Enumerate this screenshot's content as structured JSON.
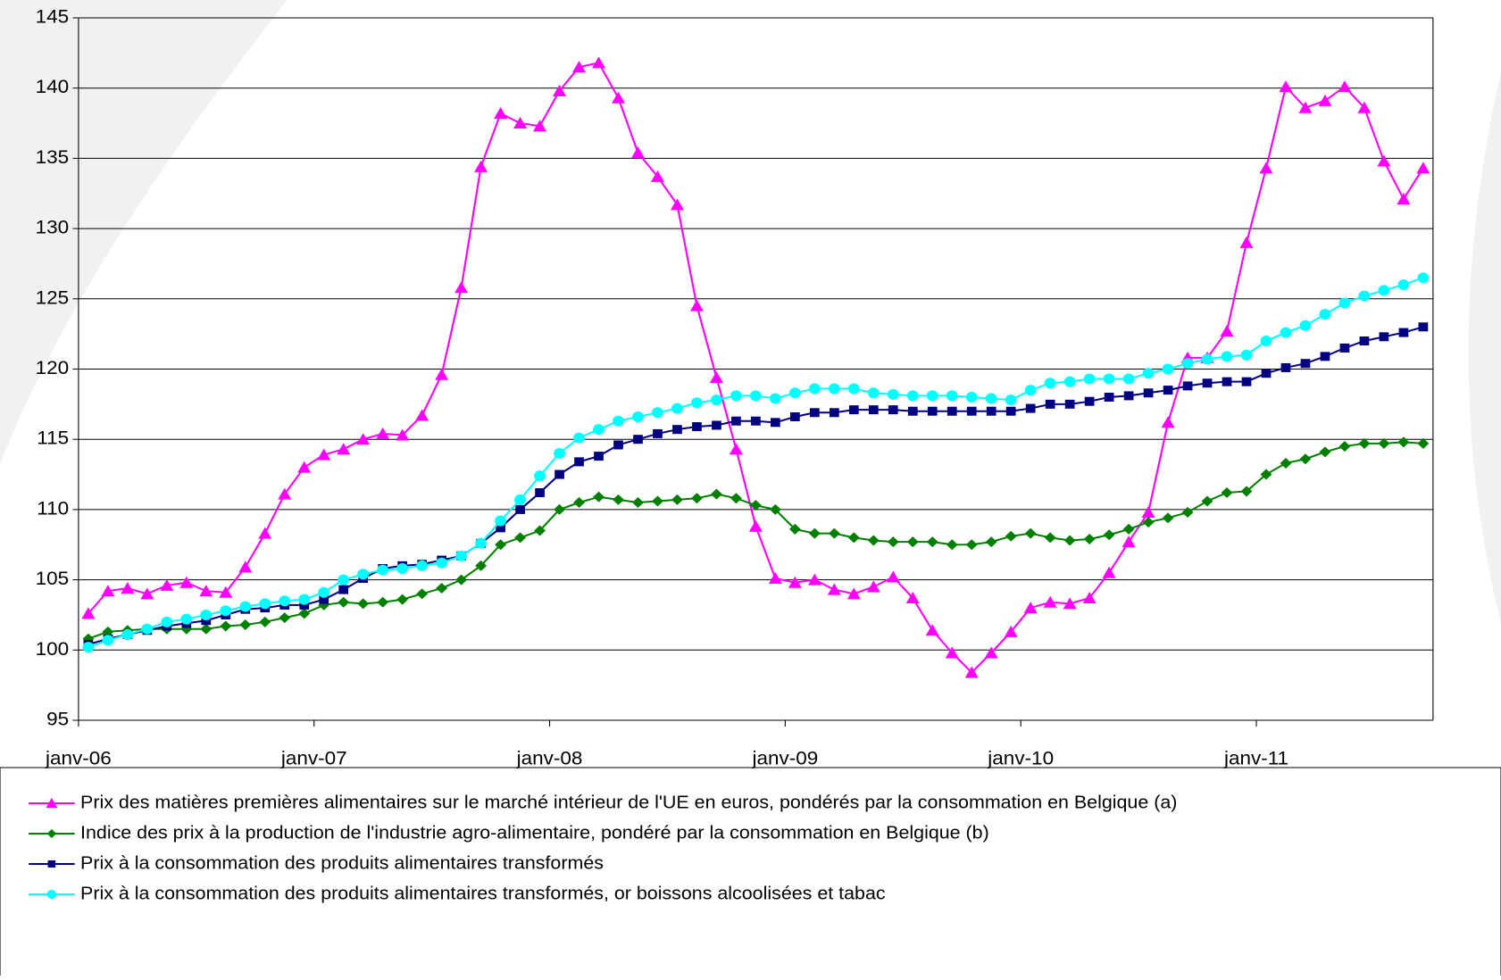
{
  "chart_data": {
    "type": "line",
    "categories": [
      "janv-06",
      null,
      null,
      null,
      null,
      null,
      null,
      null,
      null,
      null,
      null,
      null,
      "janv-07",
      null,
      null,
      null,
      null,
      null,
      null,
      null,
      null,
      null,
      null,
      null,
      "janv-08",
      null,
      null,
      null,
      null,
      null,
      null,
      null,
      null,
      null,
      null,
      null,
      "janv-09",
      null,
      null,
      null,
      null,
      null,
      null,
      null,
      null,
      null,
      null,
      null,
      "janv-10",
      null,
      null,
      null,
      null,
      null,
      null,
      null,
      null,
      null,
      null,
      null,
      "janv-11",
      null,
      null,
      null,
      null,
      null,
      null,
      null,
      null
    ],
    "ylim": [
      95,
      145
    ],
    "yticks": [
      95,
      100,
      105,
      110,
      115,
      120,
      125,
      130,
      135,
      140,
      145
    ],
    "grid": true,
    "legend": "bottom",
    "series": [
      {
        "name": "Prix des matières premières alimentaires sur le marché intérieur de l'UE en euros, pondérés par la consommation en Belgique (a)",
        "color": "#ff00ff",
        "marker": "triangle",
        "values": [
          102.6,
          104.2,
          104.4,
          104.0,
          104.6,
          104.8,
          104.2,
          104.1,
          105.9,
          108.3,
          111.1,
          113.0,
          113.9,
          114.3,
          115.0,
          115.4,
          115.3,
          116.7,
          119.6,
          125.8,
          134.4,
          138.2,
          137.5,
          137.3,
          139.8,
          141.5,
          141.8,
          139.3,
          135.4,
          133.7,
          131.7,
          124.5,
          119.4,
          114.3,
          108.8,
          105.1,
          104.8,
          105.0,
          104.3,
          104.0,
          104.5,
          105.2,
          103.7,
          101.4,
          99.8,
          98.4,
          99.8,
          101.3,
          103.0,
          103.4,
          103.3,
          103.7,
          105.5,
          107.7,
          109.8,
          116.2,
          120.8,
          120.8,
          122.7,
          129.0,
          134.3,
          140.1,
          138.6,
          139.1,
          140.1,
          138.6,
          134.8,
          132.1,
          134.3
        ]
      },
      {
        "name": "Indice des prix à la production de l'industrie agro-alimentaire, pondéré par la consommation en Belgique (b)",
        "color": "#008000",
        "marker": "diamond",
        "values": [
          100.8,
          101.3,
          101.4,
          101.5,
          101.5,
          101.5,
          101.5,
          101.7,
          101.8,
          102.0,
          102.3,
          102.6,
          103.2,
          103.4,
          103.3,
          103.4,
          103.6,
          104.0,
          104.4,
          105.0,
          106.0,
          107.5,
          108.0,
          108.5,
          110.0,
          110.5,
          110.9,
          110.7,
          110.5,
          110.6,
          110.7,
          110.8,
          111.1,
          110.8,
          110.3,
          110.0,
          108.6,
          108.3,
          108.3,
          108.0,
          107.8,
          107.7,
          107.7,
          107.7,
          107.5,
          107.5,
          107.7,
          108.1,
          108.3,
          108.0,
          107.8,
          107.9,
          108.2,
          108.6,
          109.1,
          109.4,
          109.8,
          110.6,
          111.2,
          111.3,
          112.5,
          113.3,
          113.6,
          114.1,
          114.5,
          114.7,
          114.7,
          114.8,
          114.7
        ]
      },
      {
        "name": "Prix à la consommation des produits alimentaires transformés",
        "color": "#000080",
        "marker": "square",
        "values": [
          100.4,
          100.8,
          101.1,
          101.4,
          101.7,
          101.9,
          102.1,
          102.5,
          102.9,
          103.0,
          103.2,
          103.2,
          103.6,
          104.3,
          105.1,
          105.8,
          106.0,
          106.1,
          106.4,
          106.7,
          107.6,
          108.7,
          110.0,
          111.2,
          112.5,
          113.4,
          113.8,
          114.6,
          115.0,
          115.4,
          115.7,
          115.9,
          116.0,
          116.3,
          116.3,
          116.2,
          116.6,
          116.9,
          116.9,
          117.1,
          117.1,
          117.1,
          117.0,
          117.0,
          117.0,
          117.0,
          117.0,
          117.0,
          117.2,
          117.5,
          117.5,
          117.7,
          118.0,
          118.1,
          118.3,
          118.5,
          118.8,
          119.0,
          119.1,
          119.1,
          119.7,
          120.1,
          120.4,
          120.9,
          121.5,
          122.0,
          122.3,
          122.6,
          123.0
        ]
      },
      {
        "name": "Prix à la consommation des produits alimentaires transformés, or boissons alcoolisées et tabac",
        "color": "#00ffff",
        "marker": "circle",
        "values": [
          100.2,
          100.7,
          101.1,
          101.5,
          102.0,
          102.2,
          102.5,
          102.8,
          103.1,
          103.3,
          103.5,
          103.6,
          104.1,
          105.0,
          105.4,
          105.7,
          105.8,
          106.0,
          106.2,
          106.7,
          107.6,
          109.2,
          110.7,
          112.4,
          114.0,
          115.1,
          115.7,
          116.3,
          116.6,
          116.9,
          117.2,
          117.6,
          117.8,
          118.1,
          118.1,
          117.9,
          118.3,
          118.6,
          118.6,
          118.6,
          118.3,
          118.2,
          118.1,
          118.1,
          118.1,
          118.0,
          117.9,
          117.8,
          118.5,
          119.0,
          119.1,
          119.3,
          119.3,
          119.3,
          119.7,
          120.0,
          120.4,
          120.7,
          120.9,
          121.0,
          122.0,
          122.6,
          123.1,
          123.9,
          124.7,
          125.2,
          125.6,
          126.0,
          126.5
        ]
      }
    ]
  }
}
